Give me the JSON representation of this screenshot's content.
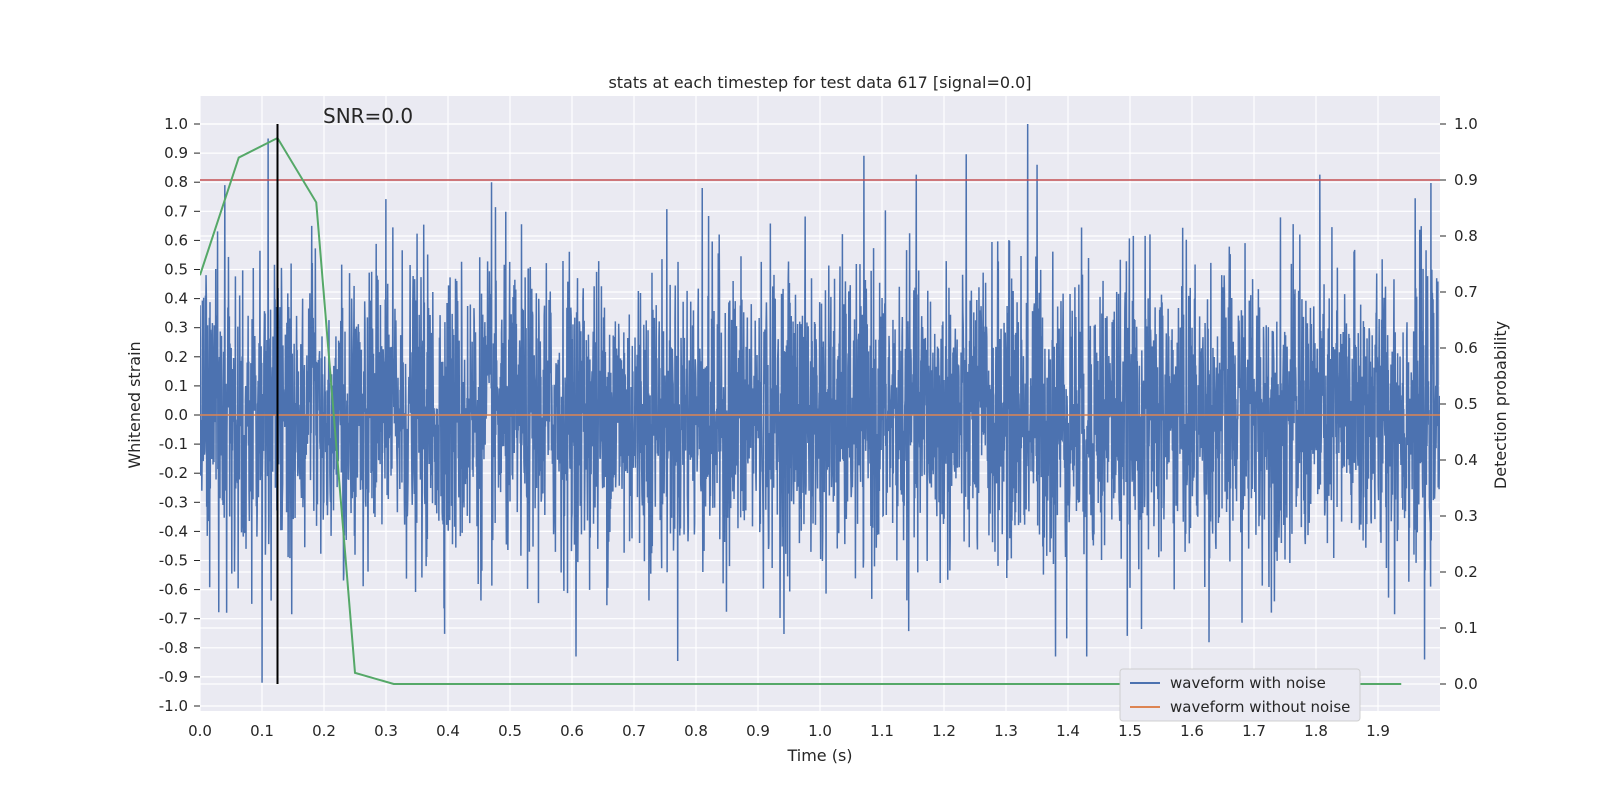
{
  "chart_data": {
    "type": "line",
    "title": "stats at each timestep for test data 617 [signal=0.0]",
    "annotation": "SNR=0.0",
    "xlabel": "Time (s)",
    "ylabel_left": "Whitened strain",
    "ylabel_right": "Detection probability",
    "xlim": [
      0.0,
      2.0
    ],
    "ylim_left": [
      -1.02,
      1.1
    ],
    "ylim_right": [
      -0.04,
      1.04
    ],
    "x_ticks": [
      "0.0",
      "0.1",
      "0.2",
      "0.3",
      "0.4",
      "0.5",
      "0.6",
      "0.7",
      "0.8",
      "0.9",
      "1.0",
      "1.1",
      "1.2",
      "1.3",
      "1.4",
      "1.5",
      "1.6",
      "1.7",
      "1.8",
      "1.9"
    ],
    "y_left_ticks": [
      "1.0",
      "0.9",
      "0.8",
      "0.7",
      "0.6",
      "0.5",
      "0.4",
      "0.3",
      "0.2",
      "0.1",
      "0.0",
      "-0.1",
      "-0.2",
      "-0.3",
      "-0.4",
      "-0.5",
      "-0.6",
      "-0.7",
      "-0.8",
      "-0.9",
      "-1.0"
    ],
    "y_right_ticks": [
      "1.0",
      "0.9",
      "0.8",
      "0.7",
      "0.6",
      "0.5",
      "0.4",
      "0.3",
      "0.2",
      "0.1",
      "0.0"
    ],
    "grid": true,
    "legend_position": "lower-right",
    "series": [
      {
        "name": "waveform with noise",
        "color": "#4c72b0",
        "axis": "left",
        "description": "dense noise trace, approx 0.25 s^-1 std with spikes to +1.0 and -0.92",
        "noise_sigma": 0.25,
        "peaks": [
          {
            "x": 0.04,
            "y": 0.79
          },
          {
            "x": 0.11,
            "y": 0.95
          },
          {
            "x": 0.18,
            "y": 0.65
          },
          {
            "x": 0.47,
            "y": 0.8
          },
          {
            "x": 0.81,
            "y": 0.78
          },
          {
            "x": 1.335,
            "y": 1.0
          },
          {
            "x": 1.35,
            "y": 0.86
          },
          {
            "x": 0.1,
            "y": -0.92
          },
          {
            "x": 1.38,
            "y": -0.83
          },
          {
            "x": 1.43,
            "y": -0.83
          },
          {
            "x": 1.975,
            "y": -0.84
          }
        ]
      },
      {
        "name": "waveform without noise",
        "color": "#dd8452",
        "axis": "left",
        "x": [
          0.0,
          2.0
        ],
        "y": [
          0.0,
          0.0
        ]
      },
      {
        "name": "detection probability",
        "color": "#55a868",
        "axis": "right",
        "x": [
          0.0,
          0.0625,
          0.125,
          0.1875,
          0.25,
          0.3125,
          0.375,
          0.5,
          1.0,
          1.5,
          1.9375
        ],
        "y": [
          0.73,
          0.94,
          0.975,
          0.86,
          0.02,
          0.0,
          0.0,
          0.0,
          0.0,
          0.0,
          0.0
        ]
      }
    ],
    "threshold": {
      "axis": "right",
      "value": 0.9,
      "color": "#c44e52"
    },
    "marker_time": {
      "x": 0.125,
      "color": "#000000"
    }
  },
  "legend": {
    "items": [
      {
        "label": "waveform with noise",
        "color": "#4c72b0"
      },
      {
        "label": "waveform without noise",
        "color": "#dd8452"
      }
    ]
  }
}
